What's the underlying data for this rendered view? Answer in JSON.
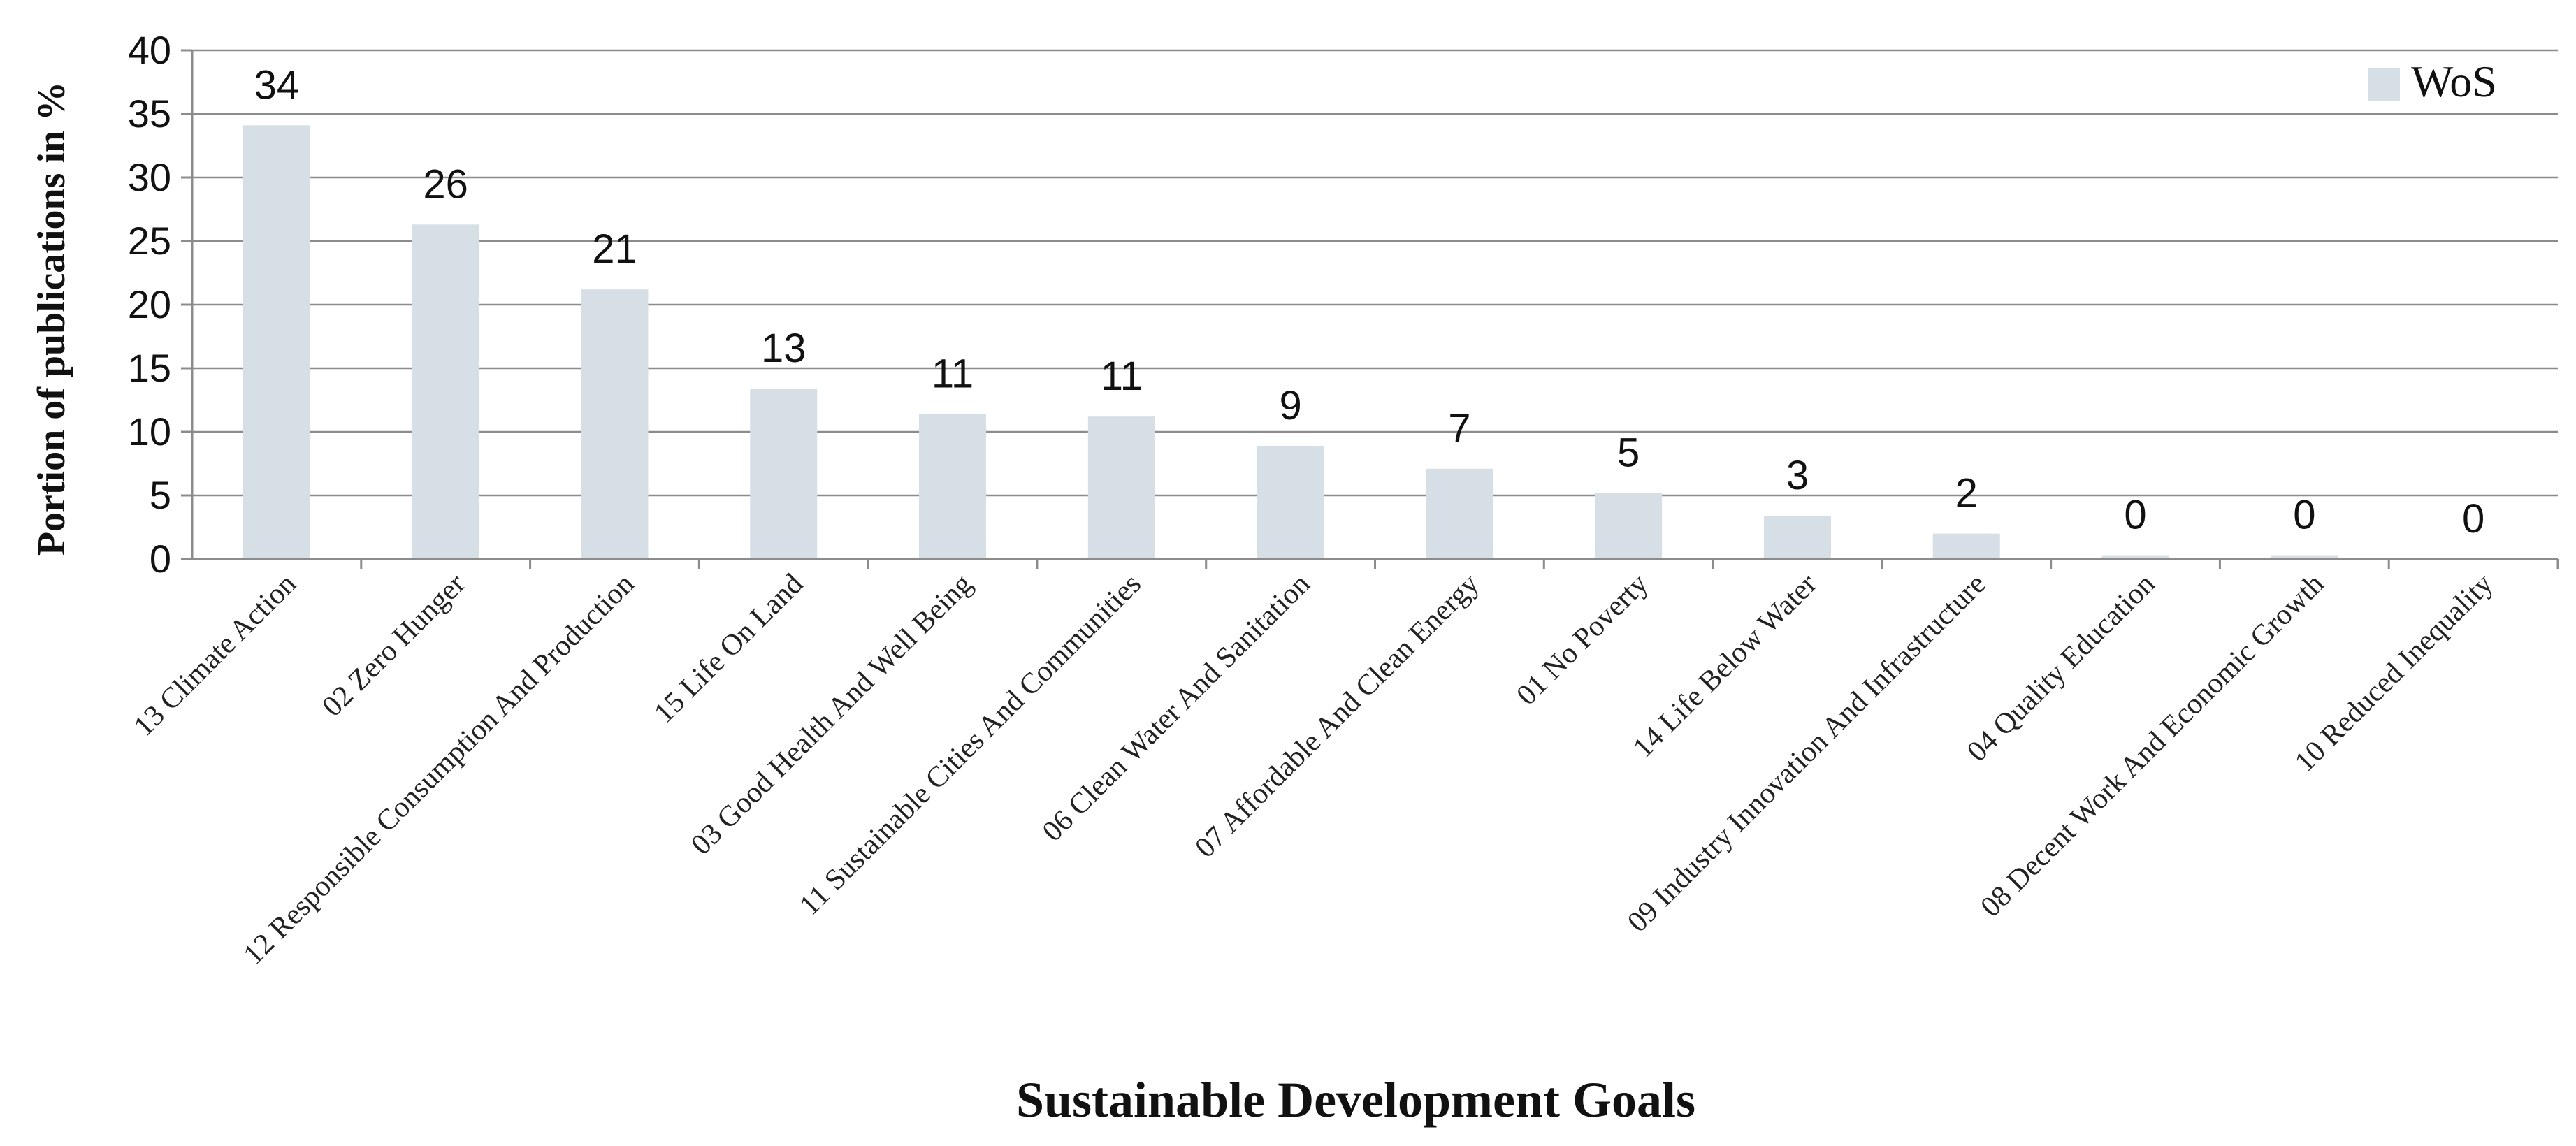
{
  "chart_data": {
    "type": "bar",
    "title": "",
    "xlabel": "Sustainable Development Goals",
    "ylabel": "Portion of publications in %",
    "ylim": [
      0,
      40
    ],
    "yticks": [
      0,
      5,
      10,
      15,
      20,
      25,
      30,
      35,
      40
    ],
    "grid": true,
    "legend_position": "top-right",
    "categories": [
      "13 Climate Action",
      "02 Zero Hunger",
      "12 Responsible Consumption And Production",
      "15 Life On Land",
      "03 Good Health And Well Being",
      "11 Sustainable Cities And Communities",
      "06 Clean Water And Sanitation",
      "07 Affordable And Clean Energy",
      "01 No Poverty",
      "14 Life Below Water",
      "09 Industry Innovation And Infrastructure",
      "04 Quality Education",
      "08 Decent Work And Economic Growth",
      "10 Reduced Inequality"
    ],
    "series": [
      {
        "name": "WoS",
        "color": "#d6dee6",
        "values": [
          34.1,
          26.3,
          21.2,
          13.4,
          11.4,
          11.2,
          8.9,
          7.1,
          5.2,
          3.4,
          2.0,
          0.3,
          0.3,
          0.0
        ],
        "labels": [
          "34",
          "26",
          "21",
          "13",
          "11",
          "11",
          "9",
          "7",
          "5",
          "3",
          "2",
          "0",
          "0",
          "0"
        ]
      }
    ]
  }
}
